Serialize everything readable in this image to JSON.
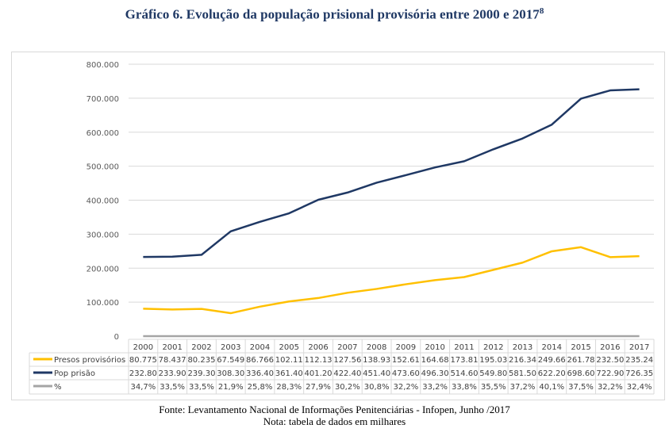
{
  "title": "Gráfico 6. Evolução da população prisional provisória entre 2000 e 2017",
  "title_footnote": "8",
  "footer": {
    "source": "Fonte: Levantamento Nacional de Informações Penitenciárias - Infopen, Junho /2017",
    "note": "Nota: tabela de dados em milhares"
  },
  "chart_data": {
    "type": "line",
    "title": "Gráfico 6. Evolução da população prisional provisória entre 2000 e 2017",
    "xlabel": "",
    "ylabel": "",
    "ylim": [
      0,
      800000
    ],
    "yticks": [
      0,
      100000,
      200000,
      300000,
      400000,
      500000,
      600000,
      700000,
      800000
    ],
    "ytick_labels": [
      "0",
      "100.000",
      "200.000",
      "300.000",
      "400.000",
      "500.000",
      "600.000",
      "700.000",
      "800.000"
    ],
    "grid": true,
    "legend": "data-table-bottom",
    "categories": [
      "2000",
      "2001",
      "2002",
      "2003",
      "2004",
      "2005",
      "2006",
      "2007",
      "2008",
      "2009",
      "2010",
      "2011",
      "2012",
      "2013",
      "2014",
      "2015",
      "2016",
      "2017"
    ],
    "series": [
      {
        "name": "Presos provisórios",
        "color": "#ffc000",
        "values": [
          80775,
          78437,
          80235,
          67549,
          86766,
          102110,
          112130,
          127560,
          138930,
          152610,
          164680,
          173810,
          195030,
          216340,
          249660,
          261780,
          232500,
          235240
        ],
        "table_labels": [
          "80.775",
          "78.437",
          "80.235",
          "67.549",
          "86.766",
          "102.11",
          "112.13",
          "127.56",
          "138.93",
          "152.61",
          "164.68",
          "173.81",
          "195.03",
          "216.34",
          "249.66",
          "261.78",
          "232.50",
          "235.24"
        ]
      },
      {
        "name": "Pop prisão",
        "color": "#1f3864",
        "values": [
          232800,
          233900,
          239300,
          308300,
          336400,
          361400,
          401200,
          422400,
          451400,
          473600,
          496300,
          514600,
          549800,
          581500,
          622200,
          698600,
          722900,
          726350
        ],
        "table_labels": [
          "232.80",
          "233.90",
          "239.30",
          "308.30",
          "336.40",
          "361.40",
          "401.20",
          "422.40",
          "451.40",
          "473.60",
          "496.30",
          "514.60",
          "549.80",
          "581.50",
          "622.20",
          "698.60",
          "722.90",
          "726.35"
        ]
      },
      {
        "name": "%",
        "color": "#a5a5a5",
        "values": [
          34.7,
          33.5,
          33.5,
          21.9,
          25.8,
          28.3,
          27.9,
          30.2,
          30.8,
          32.2,
          33.2,
          33.8,
          35.5,
          37.2,
          40.1,
          37.5,
          32.2,
          32.4
        ],
        "table_labels": [
          "34,7%",
          "33,5%",
          "33,5%",
          "21,9%",
          "25,8%",
          "28,3%",
          "27,9%",
          "30,2%",
          "30,8%",
          "32,2%",
          "33,2%",
          "33,8%",
          "35,5%",
          "37,2%",
          "40,1%",
          "37,5%",
          "32,2%",
          "32,4%"
        ]
      }
    ]
  }
}
